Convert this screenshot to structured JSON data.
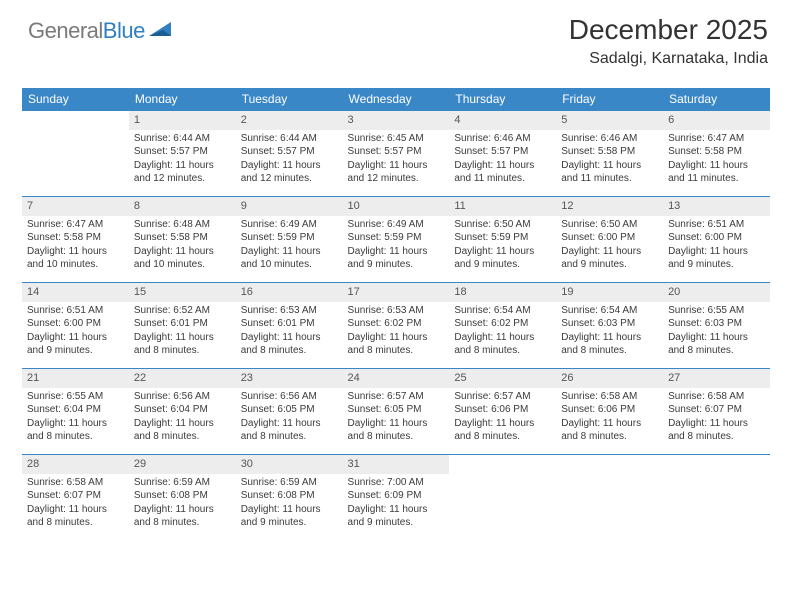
{
  "brand": {
    "part1": "General",
    "part2": "Blue"
  },
  "title": "December 2025",
  "subtitle": "Sadalgi, Karnataka, India",
  "colors": {
    "header_bg": "#3a87c7",
    "header_fg": "#ffffff",
    "daynum_bg": "#ededed",
    "rule": "#3a87c7",
    "text": "#333333",
    "logo_gray": "#7a7a7a",
    "logo_blue": "#2f7fc1"
  },
  "day_headers": [
    "Sunday",
    "Monday",
    "Tuesday",
    "Wednesday",
    "Thursday",
    "Friday",
    "Saturday"
  ],
  "layout": {
    "first_weekday_index": 1,
    "days_in_month": 31
  },
  "days": [
    {
      "n": 1,
      "sunrise": "6:44 AM",
      "sunset": "5:57 PM",
      "daylight": "11 hours and 12 minutes."
    },
    {
      "n": 2,
      "sunrise": "6:44 AM",
      "sunset": "5:57 PM",
      "daylight": "11 hours and 12 minutes."
    },
    {
      "n": 3,
      "sunrise": "6:45 AM",
      "sunset": "5:57 PM",
      "daylight": "11 hours and 12 minutes."
    },
    {
      "n": 4,
      "sunrise": "6:46 AM",
      "sunset": "5:57 PM",
      "daylight": "11 hours and 11 minutes."
    },
    {
      "n": 5,
      "sunrise": "6:46 AM",
      "sunset": "5:58 PM",
      "daylight": "11 hours and 11 minutes."
    },
    {
      "n": 6,
      "sunrise": "6:47 AM",
      "sunset": "5:58 PM",
      "daylight": "11 hours and 11 minutes."
    },
    {
      "n": 7,
      "sunrise": "6:47 AM",
      "sunset": "5:58 PM",
      "daylight": "11 hours and 10 minutes."
    },
    {
      "n": 8,
      "sunrise": "6:48 AM",
      "sunset": "5:58 PM",
      "daylight": "11 hours and 10 minutes."
    },
    {
      "n": 9,
      "sunrise": "6:49 AM",
      "sunset": "5:59 PM",
      "daylight": "11 hours and 10 minutes."
    },
    {
      "n": 10,
      "sunrise": "6:49 AM",
      "sunset": "5:59 PM",
      "daylight": "11 hours and 9 minutes."
    },
    {
      "n": 11,
      "sunrise": "6:50 AM",
      "sunset": "5:59 PM",
      "daylight": "11 hours and 9 minutes."
    },
    {
      "n": 12,
      "sunrise": "6:50 AM",
      "sunset": "6:00 PM",
      "daylight": "11 hours and 9 minutes."
    },
    {
      "n": 13,
      "sunrise": "6:51 AM",
      "sunset": "6:00 PM",
      "daylight": "11 hours and 9 minutes."
    },
    {
      "n": 14,
      "sunrise": "6:51 AM",
      "sunset": "6:00 PM",
      "daylight": "11 hours and 9 minutes."
    },
    {
      "n": 15,
      "sunrise": "6:52 AM",
      "sunset": "6:01 PM",
      "daylight": "11 hours and 8 minutes."
    },
    {
      "n": 16,
      "sunrise": "6:53 AM",
      "sunset": "6:01 PM",
      "daylight": "11 hours and 8 minutes."
    },
    {
      "n": 17,
      "sunrise": "6:53 AM",
      "sunset": "6:02 PM",
      "daylight": "11 hours and 8 minutes."
    },
    {
      "n": 18,
      "sunrise": "6:54 AM",
      "sunset": "6:02 PM",
      "daylight": "11 hours and 8 minutes."
    },
    {
      "n": 19,
      "sunrise": "6:54 AM",
      "sunset": "6:03 PM",
      "daylight": "11 hours and 8 minutes."
    },
    {
      "n": 20,
      "sunrise": "6:55 AM",
      "sunset": "6:03 PM",
      "daylight": "11 hours and 8 minutes."
    },
    {
      "n": 21,
      "sunrise": "6:55 AM",
      "sunset": "6:04 PM",
      "daylight": "11 hours and 8 minutes."
    },
    {
      "n": 22,
      "sunrise": "6:56 AM",
      "sunset": "6:04 PM",
      "daylight": "11 hours and 8 minutes."
    },
    {
      "n": 23,
      "sunrise": "6:56 AM",
      "sunset": "6:05 PM",
      "daylight": "11 hours and 8 minutes."
    },
    {
      "n": 24,
      "sunrise": "6:57 AM",
      "sunset": "6:05 PM",
      "daylight": "11 hours and 8 minutes."
    },
    {
      "n": 25,
      "sunrise": "6:57 AM",
      "sunset": "6:06 PM",
      "daylight": "11 hours and 8 minutes."
    },
    {
      "n": 26,
      "sunrise": "6:58 AM",
      "sunset": "6:06 PM",
      "daylight": "11 hours and 8 minutes."
    },
    {
      "n": 27,
      "sunrise": "6:58 AM",
      "sunset": "6:07 PM",
      "daylight": "11 hours and 8 minutes."
    },
    {
      "n": 28,
      "sunrise": "6:58 AM",
      "sunset": "6:07 PM",
      "daylight": "11 hours and 8 minutes."
    },
    {
      "n": 29,
      "sunrise": "6:59 AM",
      "sunset": "6:08 PM",
      "daylight": "11 hours and 8 minutes."
    },
    {
      "n": 30,
      "sunrise": "6:59 AM",
      "sunset": "6:08 PM",
      "daylight": "11 hours and 9 minutes."
    },
    {
      "n": 31,
      "sunrise": "7:00 AM",
      "sunset": "6:09 PM",
      "daylight": "11 hours and 9 minutes."
    }
  ],
  "labels": {
    "sunrise": "Sunrise:",
    "sunset": "Sunset:",
    "daylight": "Daylight:"
  }
}
